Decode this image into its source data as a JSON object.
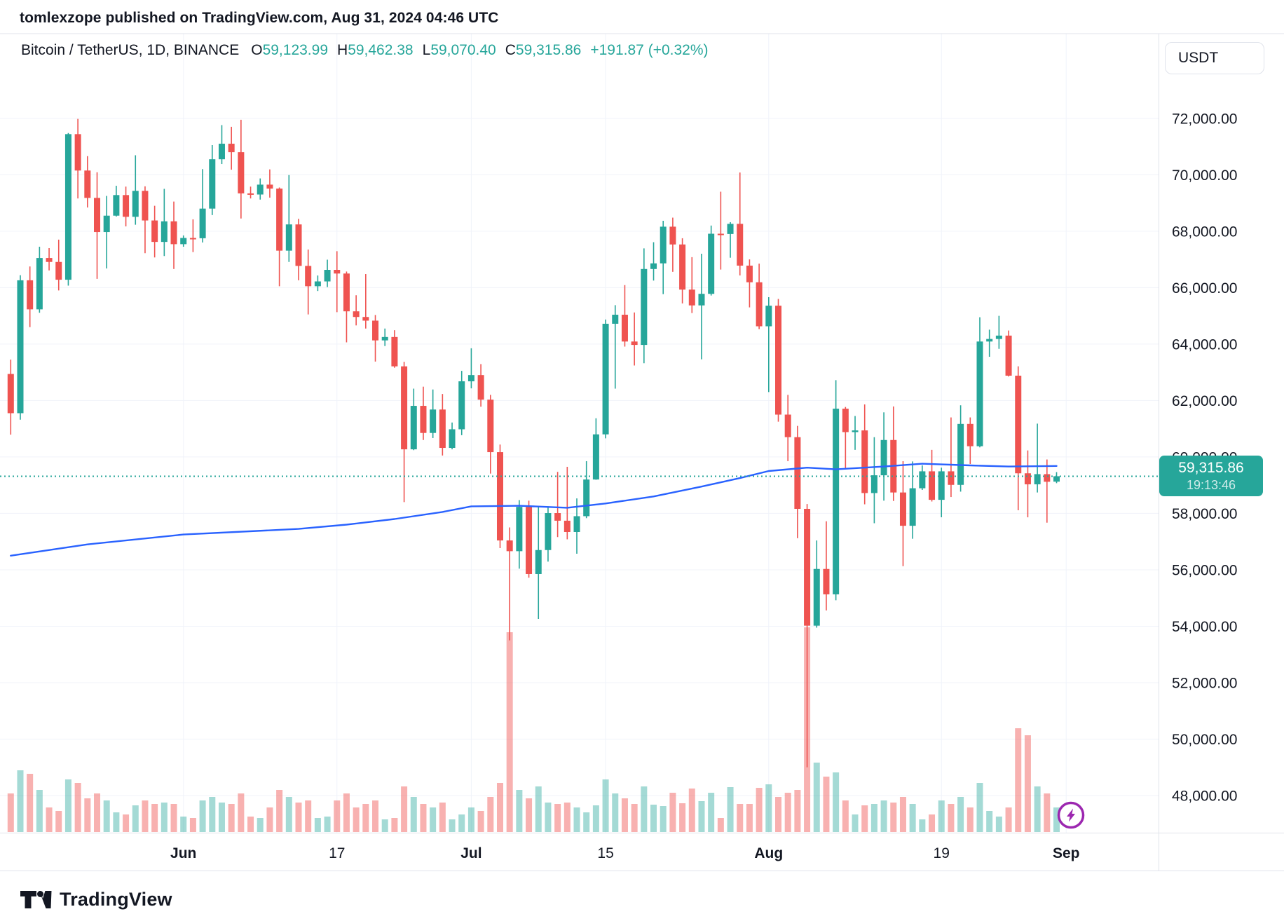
{
  "header": {
    "published_line": "tomlexzope published on TradingView.com, Aug 31, 2024 04:46 UTC"
  },
  "legend": {
    "symbol_title": "Bitcoin / TetherUS, 1D, BINANCE",
    "o_label": "O",
    "o_value": "59,123.99",
    "h_label": "H",
    "h_value": "59,462.38",
    "l_label": "L",
    "l_value": "59,070.40",
    "c_label": "C",
    "c_value": "59,315.86",
    "change": "+191.87 (+0.32%)"
  },
  "price_axis": {
    "currency_button": "USDT",
    "last_price_label": "59,315.86",
    "countdown": "19:13:46",
    "labels": [
      {
        "price": 72000,
        "label": "72,000.00"
      },
      {
        "price": 70000,
        "label": "70,000.00"
      },
      {
        "price": 68000,
        "label": "68,000.00"
      },
      {
        "price": 66000,
        "label": "66,000.00"
      },
      {
        "price": 64000,
        "label": "64,000.00"
      },
      {
        "price": 62000,
        "label": "62,000.00"
      },
      {
        "price": 60000,
        "label": "60,000.00"
      },
      {
        "price": 58000,
        "label": "58,000.00"
      },
      {
        "price": 56000,
        "label": "56,000.00"
      },
      {
        "price": 54000,
        "label": "54,000.00"
      },
      {
        "price": 52000,
        "label": "52,000.00"
      },
      {
        "price": 50000,
        "label": "50,000.00"
      },
      {
        "price": 48000,
        "label": "48,000.00"
      }
    ]
  },
  "time_axis": {
    "labels": [
      {
        "i": 18,
        "label": "Jun",
        "bold": true
      },
      {
        "i": 34,
        "label": "17",
        "bold": false
      },
      {
        "i": 48,
        "label": "Jul",
        "bold": true
      },
      {
        "i": 62,
        "label": "15",
        "bold": false
      },
      {
        "i": 79,
        "label": "Aug",
        "bold": true
      },
      {
        "i": 97,
        "label": "19",
        "bold": false
      },
      {
        "i": 110,
        "label": "Sep",
        "bold": true
      }
    ]
  },
  "footer": {
    "brand": "TradingView"
  },
  "colors": {
    "up": "#26a69a",
    "down": "#ef5350",
    "vol_up": "rgba(38,166,154,0.42)",
    "vol_down": "rgba(239,83,80,0.45)",
    "ma": "#2962ff",
    "grid": "#f0f3fa",
    "axis_border": "#e0e3eb",
    "text": "#131722",
    "last_price_line": "#26a69a",
    "badge": "#9c27b0"
  },
  "chart_data": {
    "type": "candlestick",
    "title": "Bitcoin / TetherUS, 1D, BINANCE",
    "interval": "1D",
    "quote_currency": "USDT",
    "last_price": 59315.86,
    "change": 191.87,
    "change_pct": 0.32,
    "ylim": [
      46683,
      75001
    ],
    "price_gridline_step": 2000,
    "x_range": [
      "2024-05-14",
      "2024-09-01"
    ],
    "legend_position": "top-left",
    "grid": true,
    "volume_scale": "relative pixel heights, max 292",
    "candles_format": [
      "date",
      "open",
      "high",
      "low",
      "close",
      "volume_rel"
    ],
    "candles": [
      [
        "2024-05-14",
        62940,
        63450,
        60790,
        61550,
        55
      ],
      [
        "2024-05-15",
        61550,
        66440,
        61320,
        66260,
        88
      ],
      [
        "2024-05-16",
        66260,
        66750,
        64600,
        65230,
        83
      ],
      [
        "2024-05-17",
        65230,
        67450,
        65110,
        67050,
        60
      ],
      [
        "2024-05-18",
        67050,
        67400,
        66610,
        66910,
        35
      ],
      [
        "2024-05-19",
        66910,
        67700,
        65900,
        66280,
        30
      ],
      [
        "2024-05-20",
        66280,
        71480,
        66070,
        71440,
        75
      ],
      [
        "2024-05-21",
        71440,
        71980,
        69160,
        70150,
        70
      ],
      [
        "2024-05-22",
        70150,
        70660,
        68840,
        69180,
        48
      ],
      [
        "2024-05-23",
        69180,
        70090,
        66310,
        67970,
        55
      ],
      [
        "2024-05-24",
        67970,
        69250,
        66680,
        68550,
        45
      ],
      [
        "2024-05-25",
        68550,
        69610,
        68520,
        69280,
        28
      ],
      [
        "2024-05-26",
        69280,
        69580,
        68170,
        68510,
        25
      ],
      [
        "2024-05-27",
        68510,
        70690,
        68230,
        69430,
        38
      ],
      [
        "2024-05-28",
        69430,
        69590,
        67220,
        68380,
        45
      ],
      [
        "2024-05-29",
        68380,
        68900,
        67070,
        67620,
        40
      ],
      [
        "2024-05-30",
        67620,
        69500,
        67120,
        68350,
        42
      ],
      [
        "2024-05-31",
        68350,
        69050,
        66660,
        67540,
        40
      ],
      [
        "2024-06-01",
        67540,
        67850,
        67450,
        67760,
        22
      ],
      [
        "2024-06-02",
        67760,
        68420,
        67260,
        67750,
        20
      ],
      [
        "2024-06-03",
        67750,
        70200,
        67600,
        68800,
        45
      ],
      [
        "2024-06-04",
        68800,
        71050,
        68570,
        70550,
        50
      ],
      [
        "2024-06-05",
        70550,
        71760,
        70380,
        71100,
        42
      ],
      [
        "2024-06-06",
        71100,
        71700,
        70180,
        70800,
        40
      ],
      [
        "2024-06-07",
        70800,
        71950,
        68450,
        69340,
        55
      ],
      [
        "2024-06-08",
        69340,
        69580,
        69160,
        69300,
        22
      ],
      [
        "2024-06-09",
        69300,
        69870,
        69120,
        69650,
        20
      ],
      [
        "2024-06-10",
        69650,
        70190,
        69190,
        69510,
        35
      ],
      [
        "2024-06-11",
        69510,
        69550,
        66050,
        67310,
        60
      ],
      [
        "2024-06-12",
        67310,
        69990,
        66910,
        68240,
        50
      ],
      [
        "2024-06-13",
        68240,
        68440,
        66260,
        66770,
        42
      ],
      [
        "2024-06-14",
        66770,
        67350,
        65050,
        66050,
        45
      ],
      [
        "2024-06-15",
        66050,
        66430,
        65880,
        66220,
        20
      ],
      [
        "2024-06-16",
        66220,
        66990,
        66020,
        66630,
        22
      ],
      [
        "2024-06-17",
        66630,
        67290,
        65130,
        66500,
        45
      ],
      [
        "2024-06-18",
        66500,
        66570,
        64060,
        65160,
        55
      ],
      [
        "2024-06-19",
        65160,
        65730,
        64660,
        64960,
        35
      ],
      [
        "2024-06-20",
        64960,
        66480,
        64550,
        64830,
        40
      ],
      [
        "2024-06-21",
        64830,
        65030,
        63380,
        64130,
        45
      ],
      [
        "2024-06-22",
        64130,
        64550,
        63930,
        64250,
        18
      ],
      [
        "2024-06-23",
        64250,
        64490,
        63160,
        63210,
        20
      ],
      [
        "2024-06-24",
        63210,
        63370,
        58400,
        60270,
        65
      ],
      [
        "2024-06-25",
        60270,
        62420,
        60240,
        61810,
        50
      ],
      [
        "2024-06-26",
        61810,
        62490,
        60600,
        60850,
        40
      ],
      [
        "2024-06-27",
        60850,
        62390,
        60670,
        61680,
        35
      ],
      [
        "2024-06-28",
        61680,
        62230,
        60050,
        60320,
        42
      ],
      [
        "2024-06-29",
        60320,
        61220,
        60270,
        60980,
        18
      ],
      [
        "2024-06-30",
        60980,
        63050,
        60770,
        62680,
        25
      ],
      [
        "2024-07-01",
        62680,
        63850,
        62430,
        62900,
        35
      ],
      [
        "2024-07-02",
        62900,
        63290,
        61780,
        62030,
        30
      ],
      [
        "2024-07-03",
        62030,
        62200,
        59410,
        60170,
        50
      ],
      [
        "2024-07-04",
        60170,
        60440,
        56770,
        57040,
        70
      ],
      [
        "2024-07-05",
        57040,
        57500,
        53500,
        56660,
        285
      ],
      [
        "2024-07-06",
        56660,
        58470,
        56040,
        58230,
        60
      ],
      [
        "2024-07-07",
        58230,
        58450,
        55720,
        55850,
        48
      ],
      [
        "2024-07-08",
        55850,
        58240,
        54260,
        56700,
        65
      ],
      [
        "2024-07-09",
        56700,
        58250,
        56290,
        58010,
        42
      ],
      [
        "2024-07-10",
        58010,
        59470,
        57160,
        57740,
        40
      ],
      [
        "2024-07-11",
        57740,
        59650,
        57080,
        57340,
        42
      ],
      [
        "2024-07-12",
        57340,
        58530,
        56570,
        57900,
        35
      ],
      [
        "2024-07-13",
        57900,
        59850,
        57830,
        59200,
        28
      ],
      [
        "2024-07-14",
        59200,
        61370,
        59190,
        60800,
        38
      ],
      [
        "2024-07-15",
        60800,
        64870,
        60660,
        64720,
        75
      ],
      [
        "2024-07-16",
        64720,
        65380,
        62420,
        65040,
        55
      ],
      [
        "2024-07-17",
        65040,
        66090,
        63910,
        64090,
        48
      ],
      [
        "2024-07-18",
        64090,
        65120,
        63240,
        63970,
        40
      ],
      [
        "2024-07-19",
        63970,
        67390,
        63320,
        66660,
        65
      ],
      [
        "2024-07-20",
        66660,
        67610,
        66250,
        66860,
        39
      ],
      [
        "2024-07-21",
        66860,
        68370,
        65770,
        68160,
        37
      ],
      [
        "2024-07-22",
        68160,
        68480,
        66560,
        67530,
        56
      ],
      [
        "2024-07-23",
        67530,
        67750,
        65440,
        65930,
        41
      ],
      [
        "2024-07-24",
        65930,
        67080,
        65100,
        65370,
        62
      ],
      [
        "2024-07-25",
        65370,
        67200,
        63460,
        65780,
        44
      ],
      [
        "2024-07-26",
        65780,
        68200,
        65720,
        67910,
        56
      ],
      [
        "2024-07-27",
        67910,
        69400,
        66640,
        67900,
        20
      ],
      [
        "2024-07-28",
        67900,
        68320,
        67060,
        68260,
        64
      ],
      [
        "2024-07-29",
        68260,
        70080,
        66430,
        66780,
        40
      ],
      [
        "2024-07-30",
        66780,
        67000,
        65300,
        66190,
        40
      ],
      [
        "2024-07-31",
        66190,
        66850,
        64530,
        64630,
        63
      ],
      [
        "2024-08-01",
        64630,
        65660,
        62300,
        65360,
        68
      ],
      [
        "2024-08-02",
        65360,
        65600,
        61250,
        61500,
        50
      ],
      [
        "2024-08-03",
        61500,
        62200,
        59850,
        60700,
        56
      ],
      [
        "2024-08-04",
        60700,
        61100,
        57120,
        58160,
        60
      ],
      [
        "2024-08-05",
        58160,
        58330,
        49000,
        54020,
        292
      ],
      [
        "2024-08-06",
        54020,
        57040,
        53950,
        56030,
        99
      ],
      [
        "2024-08-07",
        56030,
        57720,
        54560,
        55130,
        79
      ],
      [
        "2024-08-08",
        55130,
        62720,
        54920,
        61710,
        85
      ],
      [
        "2024-08-09",
        61710,
        61770,
        59560,
        60880,
        45
      ],
      [
        "2024-08-10",
        60880,
        61450,
        60250,
        60940,
        25
      ],
      [
        "2024-08-11",
        60940,
        61860,
        58320,
        58720,
        38
      ],
      [
        "2024-08-12",
        58720,
        60700,
        57650,
        59350,
        40
      ],
      [
        "2024-08-13",
        59350,
        61580,
        58450,
        60600,
        45
      ],
      [
        "2024-08-14",
        60600,
        61790,
        58440,
        58740,
        42
      ],
      [
        "2024-08-15",
        58740,
        59850,
        56130,
        57560,
        50
      ],
      [
        "2024-08-16",
        57560,
        59840,
        57100,
        58890,
        40
      ],
      [
        "2024-08-17",
        58890,
        59700,
        58830,
        59490,
        18
      ],
      [
        "2024-08-18",
        59490,
        60250,
        58420,
        58480,
        25
      ],
      [
        "2024-08-19",
        58480,
        59620,
        57860,
        59490,
        45
      ],
      [
        "2024-08-20",
        59490,
        61400,
        58580,
        59010,
        40
      ],
      [
        "2024-08-21",
        59010,
        61830,
        58770,
        61170,
        50
      ],
      [
        "2024-08-22",
        61170,
        61400,
        59750,
        60380,
        35
      ],
      [
        "2024-08-23",
        60380,
        64950,
        60340,
        64090,
        70
      ],
      [
        "2024-08-24",
        64090,
        64510,
        63550,
        64180,
        30
      ],
      [
        "2024-08-25",
        64180,
        65000,
        63830,
        64300,
        22
      ],
      [
        "2024-08-26",
        64300,
        64480,
        62850,
        62880,
        35
      ],
      [
        "2024-08-27",
        62880,
        63210,
        58110,
        59420,
        148
      ],
      [
        "2024-08-28",
        59420,
        60230,
        57860,
        59030,
        138
      ],
      [
        "2024-08-29",
        59030,
        61180,
        58740,
        59390,
        65
      ],
      [
        "2024-08-30",
        59390,
        59910,
        57670,
        59120,
        55
      ],
      [
        "2024-08-31",
        59124,
        59462,
        59070,
        59316,
        35
      ]
    ],
    "ma_line": {
      "name": "moving-average",
      "color": "#2962ff",
      "points_format": [
        "day_index",
        "price"
      ],
      "points": [
        [
          0,
          56500
        ],
        [
          8,
          56900
        ],
        [
          18,
          57250
        ],
        [
          30,
          57450
        ],
        [
          35,
          57600
        ],
        [
          40,
          57800
        ],
        [
          45,
          58050
        ],
        [
          48,
          58250
        ],
        [
          53,
          58270
        ],
        [
          58,
          58200
        ],
        [
          62,
          58350
        ],
        [
          67,
          58600
        ],
        [
          72,
          58950
        ],
        [
          76,
          59250
        ],
        [
          79,
          59500
        ],
        [
          83,
          59620
        ],
        [
          86,
          59560
        ],
        [
          91,
          59660
        ],
        [
          95,
          59760
        ],
        [
          100,
          59700
        ],
        [
          104,
          59660
        ],
        [
          109,
          59680
        ]
      ]
    }
  }
}
